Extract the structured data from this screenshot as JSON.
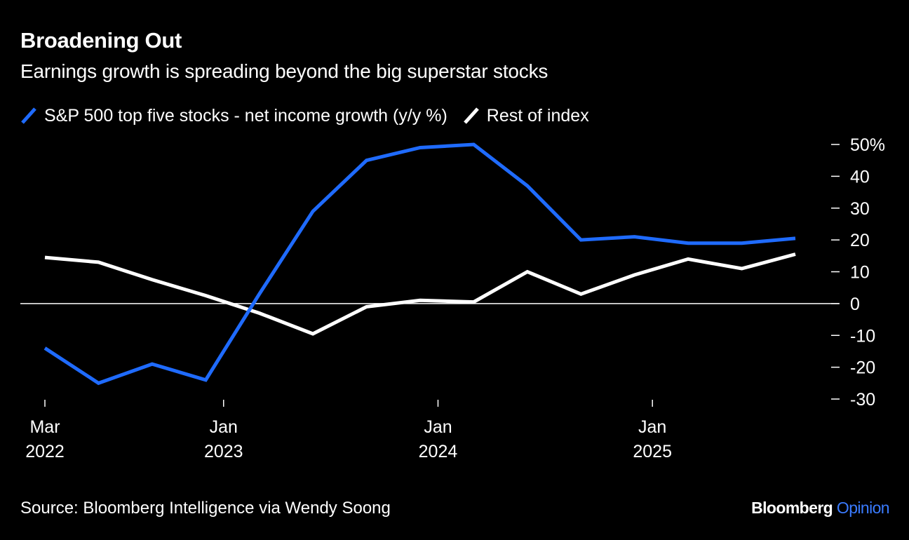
{
  "title": "Broadening Out",
  "subtitle": "Earnings growth is spreading beyond the big superstar stocks",
  "legend": [
    {
      "label": "S&P 500 top five stocks - net income growth (y/y %)",
      "color": "#1f6bff"
    },
    {
      "label": "Rest of index",
      "color": "#ffffff"
    }
  ],
  "source": "Source: Bloomberg Intelligence via Wendy Soong",
  "brand": {
    "name": "Bloomberg",
    "accent": "Opinion",
    "accent_color": "#3a7bff"
  },
  "chart_data": {
    "type": "line",
    "title": "Broadening Out",
    "subtitle": "Earnings growth is spreading beyond the big superstar stocks",
    "x": [
      "2022-03",
      "2022-06",
      "2022-09",
      "2022-12",
      "2023-03",
      "2023-06",
      "2023-09",
      "2023-12",
      "2024-03",
      "2024-06",
      "2024-09",
      "2024-12",
      "2025-03",
      "2025-06",
      "2025-09"
    ],
    "series": [
      {
        "name": "S&P 500 top five stocks - net income growth (y/y %)",
        "color": "#1f6bff",
        "values": [
          -14,
          -25,
          -19,
          -24,
          3,
          29,
          45,
          49,
          50,
          37,
          20,
          21,
          19,
          19,
          20.5
        ]
      },
      {
        "name": "Rest of index",
        "color": "#ffffff",
        "values": [
          14.5,
          13,
          7.5,
          2.5,
          -3,
          -9.5,
          -1,
          1,
          0.5,
          10,
          3,
          9,
          14,
          11,
          15.5
        ]
      }
    ],
    "ylim": [
      -30,
      50
    ],
    "yticks": [
      50,
      40,
      30,
      20,
      10,
      0,
      -10,
      -20,
      -30
    ],
    "ytick_labels": [
      "50%",
      "40",
      "30",
      "20",
      "10",
      "0",
      "-10",
      "-20",
      "-30"
    ],
    "xticks": [
      {
        "date": "2022-03",
        "line1": "Mar",
        "line2": "2022"
      },
      {
        "date": "2023-01",
        "line1": "Jan",
        "line2": "2023"
      },
      {
        "date": "2024-01",
        "line1": "Jan",
        "line2": "2024"
      },
      {
        "date": "2025-01",
        "line1": "Jan",
        "line2": "2025"
      }
    ],
    "zero_line": true,
    "grid": false,
    "legend_position": "top-left",
    "y_axis_side": "right"
  }
}
